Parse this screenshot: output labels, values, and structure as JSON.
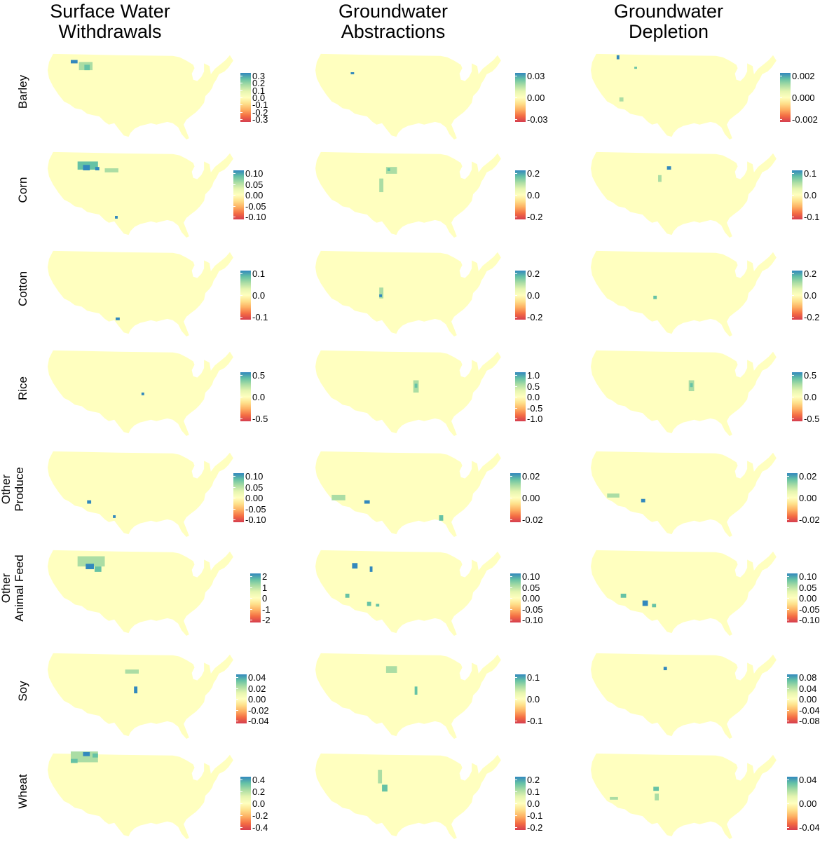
{
  "colors": {
    "background": "#ffffff",
    "land": "#ffffbf",
    "scale": [
      "#3288bd",
      "#66c2a5",
      "#abdda4",
      "#e6f5b0",
      "#ffffbf",
      "#fee08b",
      "#fdae61",
      "#f46d43",
      "#d53e4f"
    ]
  },
  "columns": [
    {
      "line1": "Surface Water",
      "line2": "Withdrawals"
    },
    {
      "line1": "Groundwater",
      "line2": "Abstractions"
    },
    {
      "line1": "Groundwater",
      "line2": "Depletion"
    }
  ],
  "rows": [
    {
      "label": [
        "Barley"
      ],
      "legends": [
        {
          "ticks": [
            "0.3",
            "0.2",
            "0.1",
            "0.0",
            "-0.1",
            "-0.2",
            "-0.3"
          ]
        },
        {
          "ticks": [
            "0.03",
            "0.00",
            "-0.03"
          ]
        },
        {
          "ticks": [
            "0.002",
            "0.000",
            "-0.002"
          ]
        }
      ]
    },
    {
      "label": [
        "Corn"
      ],
      "legends": [
        {
          "ticks": [
            "0.10",
            "0.05",
            "0.00",
            "-0.05",
            "-0.10"
          ]
        },
        {
          "ticks": [
            "0.2",
            "0.0",
            "-0.2"
          ]
        },
        {
          "ticks": [
            "0.1",
            "0.0",
            "-0.1"
          ]
        }
      ]
    },
    {
      "label": [
        "Cotton"
      ],
      "legends": [
        {
          "ticks": [
            "0.1",
            "0.0",
            "-0.1"
          ]
        },
        {
          "ticks": [
            "0.2",
            "0.0",
            "-0.2"
          ]
        },
        {
          "ticks": [
            "0.2",
            "0.0",
            "-0.2"
          ]
        }
      ]
    },
    {
      "label": [
        "Rice"
      ],
      "legends": [
        {
          "ticks": [
            "0.5",
            "0.0",
            "-0.5"
          ]
        },
        {
          "ticks": [
            "1.0",
            "0.5",
            "0.0",
            "-0.5",
            "-1.0"
          ]
        },
        {
          "ticks": [
            "0.5",
            "0.0",
            "-0.5"
          ]
        }
      ]
    },
    {
      "label": [
        "Other",
        "Produce"
      ],
      "legends": [
        {
          "ticks": [
            "0.10",
            "0.05",
            "0.00",
            "-0.05",
            "-0.10"
          ]
        },
        {
          "ticks": [
            "0.02",
            "0.00",
            "-0.02"
          ]
        },
        {
          "ticks": [
            "0.02",
            "0.00",
            "-0.02"
          ]
        }
      ]
    },
    {
      "label": [
        "Other",
        "Animal Feed"
      ],
      "legends": [
        {
          "ticks": [
            "2",
            "1",
            "0",
            "-1",
            "-2"
          ]
        },
        {
          "ticks": [
            "0.10",
            "0.05",
            "0.00",
            "-0.05",
            "-0.10"
          ]
        },
        {
          "ticks": [
            "0.10",
            "0.05",
            "0.00",
            "-0.05",
            "-0.10"
          ]
        }
      ]
    },
    {
      "label": [
        "Soy"
      ],
      "legends": [
        {
          "ticks": [
            "0.04",
            "0.02",
            "0.00",
            "-0.02",
            "-0.04"
          ]
        },
        {
          "ticks": [
            "0.1",
            "0.0",
            "-0.1"
          ]
        },
        {
          "ticks": [
            "0.08",
            "0.04",
            "0.00",
            "-0.04",
            "-0.08"
          ]
        }
      ]
    },
    {
      "label": [
        "Wheat"
      ],
      "legends": [
        {
          "ticks": [
            "0.4",
            "0.2",
            "0.0",
            "-0.2",
            "-0.4"
          ]
        },
        {
          "ticks": [
            "0.2",
            "0.1",
            "0.0",
            "-0.1",
            "-0.2"
          ]
        },
        {
          "ticks": [
            "0.04",
            "0.00",
            "-0.04"
          ]
        }
      ]
    }
  ]
}
